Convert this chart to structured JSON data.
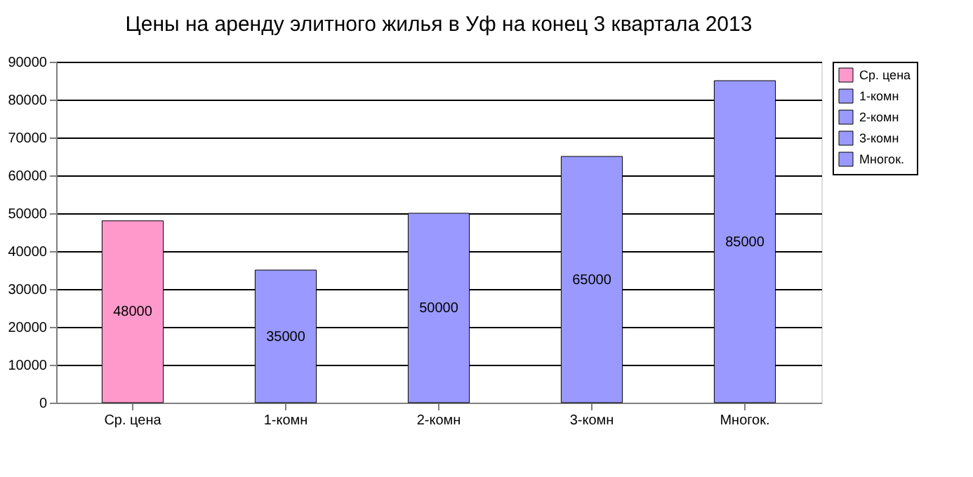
{
  "chart_data": {
    "type": "bar",
    "title": "Цены на аренду элитного жилья в Уф на конец 3 квартала 2013",
    "categories": [
      "Ср. цена",
      "1-комн",
      "2-комн",
      "3-комн",
      "Многок."
    ],
    "series": [
      {
        "name": "Ср. цена",
        "color": "#ff99cc",
        "values": [
          48000,
          null,
          null,
          null,
          null
        ]
      },
      {
        "name": "1-комн",
        "color": "#9999ff",
        "values": [
          null,
          35000,
          null,
          null,
          null
        ]
      },
      {
        "name": "2-комн",
        "color": "#9999ff",
        "values": [
          null,
          null,
          50000,
          null,
          null
        ]
      },
      {
        "name": "3-комн",
        "color": "#9999ff",
        "values": [
          null,
          null,
          null,
          65000,
          null
        ]
      },
      {
        "name": "Многок.",
        "color": "#9999ff",
        "values": [
          null,
          null,
          null,
          null,
          85000
        ]
      }
    ],
    "ylim": [
      0,
      90000
    ],
    "yticks": [
      0,
      10000,
      20000,
      30000,
      40000,
      50000,
      60000,
      70000,
      80000,
      90000
    ],
    "grid": "y",
    "legend": "right",
    "data_labels": true
  }
}
